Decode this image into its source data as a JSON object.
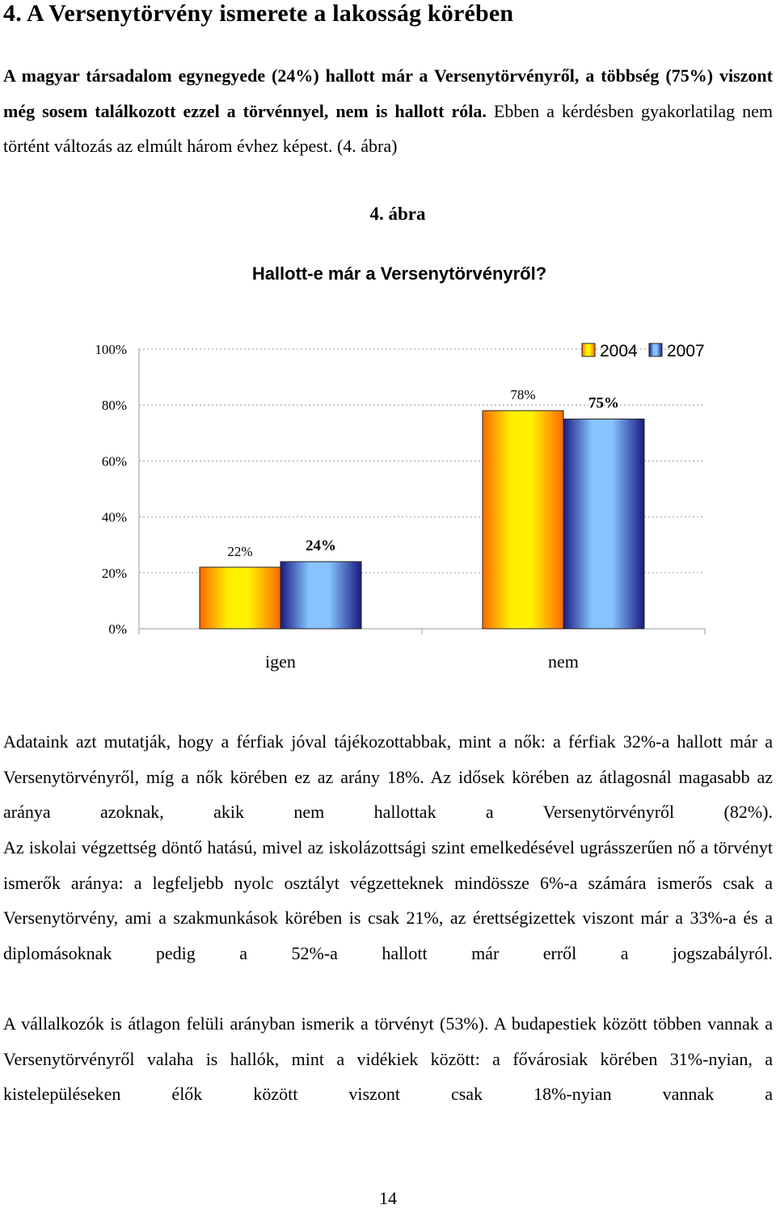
{
  "heading": "4. A Versenytörvény ismerete a lakosság körében",
  "intro": {
    "bold": "A magyar társadalom egynegyede (24%) hallott már a Versenytörvényről, a többség (75%) viszont még sosem találkozott ezzel a törvénnyel, nem is hallott róla.",
    "normal": " Ebben a kérdésben gyakorlatilag nem történt változás az elmúlt három évhez képest. (4. ábra)"
  },
  "figure": {
    "number": "4. ábra",
    "title": "Hallott-e már a Versenytörvényről?"
  },
  "chart_data": {
    "type": "bar",
    "categories": [
      "igen",
      "nem"
    ],
    "series": [
      {
        "name": "2004",
        "values": [
          22,
          78
        ],
        "labels": [
          "22%",
          "78%"
        ]
      },
      {
        "name": "2007",
        "values": [
          24,
          75
        ],
        "labels": [
          "24%",
          "75%"
        ]
      }
    ],
    "ylim": [
      0,
      100
    ],
    "yticks": [
      "0%",
      "20%",
      "40%",
      "60%",
      "80%",
      "100%"
    ],
    "legend": "top-right",
    "grid": true,
    "colors": {
      "2004": "#ffd000",
      "2007": "#6fb3f5"
    }
  },
  "paragraphs": [
    "Adataink azt mutatják, hogy a férfiak jóval tájékozottabbak, mint a nők: a férfiak 32%-a hallott már a Versenytörvényről, míg a nők körében ez az arány 18%. Az idősek körében az átlagosnál magasabb az aránya azoknak, akik nem hallottak a Versenytörvényről (82%).",
    "Az iskolai végzettség döntő hatású, mivel az iskolázottsági szint emelkedésével ugrásszerűen nő a törvényt ismerők aránya: a legfeljebb nyolc osztályt végzetteknek mindössze 6%-a számára ismerős csak a Versenytörvény, ami a szakmunkások körében is csak 21%, az érettségizettek viszont már a 33%-a és a diplomásoknak pedig a 52%-a hallott már erről a jogszabályról.",
    "A vállalkozók is átlagon felüli arányban ismerik a törvényt (53%). A budapestiek között többen vannak a Versenytörvényről valaha is hallók, mint a vidékiek között: a fővárosiak körében 31%-nyian, a kistelepüléseken élők között viszont csak 18%-nyian vannak a"
  ],
  "page_number": "14"
}
